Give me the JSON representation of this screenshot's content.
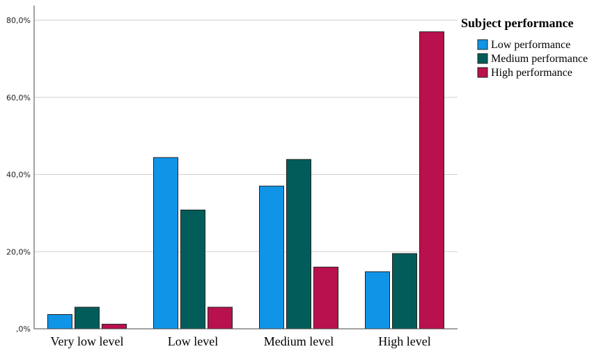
{
  "chart_data": {
    "type": "bar",
    "categories": [
      "Very low level",
      "Low level",
      "Medium level",
      "High level"
    ],
    "series": [
      {
        "name": "Low performance",
        "color": "#0f94e8",
        "values": [
          3.7,
          44.4,
          37.0,
          14.8
        ]
      },
      {
        "name": "Medium performance",
        "color": "#025d5a",
        "values": [
          5.6,
          30.8,
          43.9,
          19.5
        ]
      },
      {
        "name": "High performance",
        "color": "#b8114e",
        "values": [
          1.2,
          5.6,
          16.0,
          77.0
        ]
      }
    ],
    "yticks": [
      {
        "value": 0,
        "label": ",0%"
      },
      {
        "value": 20,
        "label": "20,0%"
      },
      {
        "value": 40,
        "label": "40,0%"
      },
      {
        "value": 60,
        "label": "60,0%"
      },
      {
        "value": 80,
        "label": "80,0%"
      }
    ],
    "ylim": [
      0,
      80
    ],
    "grid": true,
    "legend": {
      "title": "Subject performance",
      "position": "top-right"
    },
    "title": "",
    "xlabel": "",
    "ylabel": ""
  }
}
